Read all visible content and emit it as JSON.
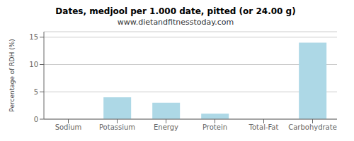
{
  "chart_data": {
    "type": "bar",
    "title": "Dates, medjool per 1.000 date, pitted (or 24.00 g)",
    "subtitle": "www.dietandfitnesstoday.com",
    "categories": [
      "Sodium",
      "Potassium",
      "Energy",
      "Protein",
      "Total-Fat",
      "Carbohydrate"
    ],
    "values": [
      0.0,
      4.0,
      3.0,
      1.0,
      0.0,
      14.0
    ],
    "color": "#add8e6",
    "ylabel": "Percentage of RDH (%)",
    "ylim": [
      0,
      16
    ],
    "yticks": [
      0,
      5,
      10,
      15
    ],
    "grid": true
  }
}
